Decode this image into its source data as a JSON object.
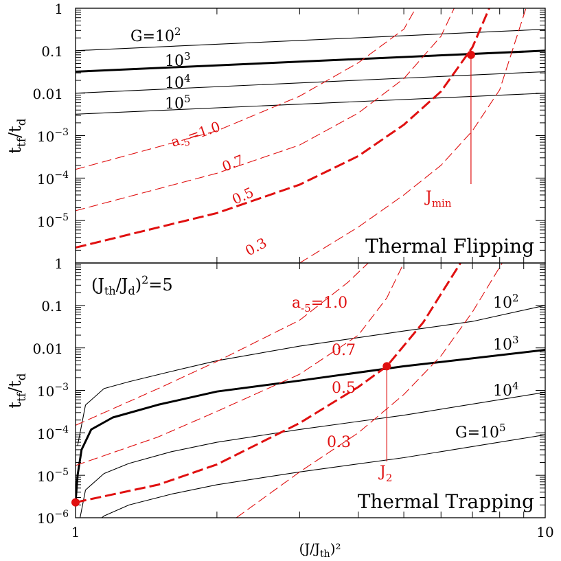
{
  "chart_data": [
    {
      "type": "line",
      "title": "Thermal Flipping",
      "xscale": "log",
      "yscale": "log",
      "xlim": [
        1,
        10
      ],
      "ylim": [
        1e-06,
        1
      ],
      "xlabel": "",
      "ylabel": "t_tf/t_d",
      "ytick_labels": [
        "1",
        "0.1",
        "0.01",
        "10^-3",
        "10^-4",
        "10^-5"
      ],
      "series": [
        {
          "name": "G=10^2",
          "color": "#000000",
          "style": "solid",
          "x": [
            1,
            10
          ],
          "y": [
            0.1,
            0.32
          ]
        },
        {
          "name": "10^3",
          "color": "#000000",
          "style": "solid-bold",
          "x": [
            1,
            10
          ],
          "y": [
            0.032,
            0.1
          ]
        },
        {
          "name": "10^4",
          "color": "#000000",
          "style": "solid",
          "x": [
            1,
            10
          ],
          "y": [
            0.01,
            0.032
          ]
        },
        {
          "name": "10^5",
          "color": "#000000",
          "style": "solid",
          "x": [
            1,
            10
          ],
          "y": [
            0.0032,
            0.01
          ]
        },
        {
          "name": "a_-5=1.0",
          "color": "#e01010",
          "style": "dashed",
          "x": [
            1,
            2,
            3,
            4,
            5,
            5.3
          ],
          "y": [
            0.00016,
            0.0013,
            0.0085,
            0.052,
            0.32,
            1
          ]
        },
        {
          "name": "0.7",
          "color": "#e01010",
          "style": "dashed",
          "x": [
            1,
            2,
            3,
            4,
            5,
            6,
            6.4
          ],
          "y": [
            1.7e-05,
            0.00013,
            0.0006,
            0.0034,
            0.022,
            0.22,
            1
          ]
        },
        {
          "name": "0.5",
          "color": "#e01010",
          "style": "dashed-bold",
          "x": [
            1,
            2,
            3,
            4,
            5,
            6,
            7,
            7.6
          ],
          "y": [
            2.3e-06,
            1.5e-05,
            7e-05,
            0.00033,
            0.0018,
            0.011,
            0.12,
            1
          ]
        },
        {
          "name": "0.3",
          "color": "#e01010",
          "style": "dashed",
          "x": [
            3,
            4,
            5,
            6,
            7,
            8,
            9.1
          ],
          "y": [
            1e-06,
            7e-06,
            4e-05,
            0.0002,
            0.0013,
            0.012,
            1
          ]
        }
      ],
      "point": {
        "label": "J_min",
        "x": 6.95,
        "y": 0.08
      },
      "annotations": {
        "g_label": "G=10",
        "g_exp": "2",
        "g3": "10",
        "g3_exp": "3",
        "g4": "10",
        "g4_exp": "4",
        "g5": "10",
        "g5_exp": "5",
        "a_label": "a",
        "a_sub": "-5",
        "a_val": "=1.0",
        "a07": "0.7",
        "a05": "0.5",
        "a03": "0.3",
        "jmin": "J",
        "jmin_sub": "min"
      }
    },
    {
      "type": "line",
      "title": "Thermal Trapping",
      "xscale": "log",
      "yscale": "log",
      "xlim": [
        1,
        10
      ],
      "ylim": [
        1e-06,
        1
      ],
      "xlabel": "(J/J_th)^2",
      "ylabel": "t_tf/t_d",
      "subtitle": "(J_th/J_d)^2=5",
      "xtick_labels": [
        "1",
        "10"
      ],
      "ytick_labels": [
        "1",
        "0.1",
        "0.01",
        "10^-3",
        "10^-4",
        "10^-5",
        "10^-6"
      ],
      "series": [
        {
          "name": "10^2",
          "color": "#000000",
          "style": "solid",
          "x": [
            1.01,
            1.05,
            1.15,
            1.3,
            1.6,
            2,
            3,
            5,
            7,
            10
          ],
          "y": [
            5e-05,
            0.00045,
            0.0011,
            0.0016,
            0.0028,
            0.005,
            0.011,
            0.025,
            0.042,
            0.1
          ]
        },
        {
          "name": "10^3",
          "color": "#000000",
          "style": "solid-bold",
          "x": [
            1,
            1.01,
            1.03,
            1.08,
            1.2,
            1.5,
            2,
            3,
            5,
            10
          ],
          "y": [
            2.3e-06,
            1e-05,
            4e-05,
            0.00012,
            0.00023,
            0.00046,
            0.00094,
            0.0017,
            0.0037,
            0.009
          ]
        },
        {
          "name": "10^4",
          "color": "#000000",
          "style": "solid",
          "x": [
            1.01,
            1.05,
            1.15,
            1.3,
            1.6,
            2,
            3,
            5,
            10
          ],
          "y": [
            5e-07,
            4.5e-06,
            1.1e-05,
            1.9e-05,
            3.6e-05,
            6e-05,
            0.00012,
            0.00026,
            0.0009
          ]
        },
        {
          "name": "G=10^5",
          "color": "#000000",
          "style": "solid",
          "x": [
            1.05,
            1.15,
            1.3,
            1.6,
            2,
            3,
            5,
            10
          ],
          "y": [
            5e-07,
            1.1e-06,
            2e-06,
            3.6e-06,
            6e-06,
            1.2e-05,
            2.6e-05,
            9e-05
          ]
        },
        {
          "name": "a_-5=1.0",
          "color": "#e01010",
          "style": "dashed",
          "x": [
            1,
            1.5,
            2,
            3,
            3.8,
            4.2
          ],
          "y": [
            0.00015,
            0.0011,
            0.0048,
            0.045,
            0.35,
            1
          ]
        },
        {
          "name": "0.7",
          "color": "#e01010",
          "style": "dashed",
          "x": [
            1,
            1.5,
            2,
            3,
            4,
            4.6,
            5
          ],
          "y": [
            1.7e-05,
            8e-05,
            0.00032,
            0.0024,
            0.02,
            0.15,
            1
          ]
        },
        {
          "name": "0.5",
          "color": "#e01010",
          "style": "dashed-bold",
          "x": [
            1,
            1.5,
            2,
            3,
            4,
            4.6,
            5.5,
            6.6
          ],
          "y": [
            2.3e-06,
            6e-06,
            1.8e-05,
            0.00017,
            0.0012,
            0.0037,
            0.04,
            1
          ]
        },
        {
          "name": "0.3",
          "color": "#e01010",
          "style": "dashed",
          "x": [
            2.2,
            3,
            4,
            5,
            6,
            7,
            8.1
          ],
          "y": [
            1e-06,
            1.2e-05,
            0.0001,
            0.0008,
            0.0065,
            0.07,
            1
          ]
        }
      ],
      "points": [
        {
          "x": 1,
          "y": 2.3e-06
        },
        {
          "label": "J_2",
          "x": 4.6,
          "y": 0.0037
        }
      ],
      "annotations": {
        "sub_open": "(J",
        "sub_th": "th",
        "sub_mid": "/J",
        "sub_d": "d",
        "sub_close": ")",
        "sub_exp": "2",
        "sub_eq": "=5",
        "a_label": "a",
        "a_sub": "-5",
        "a_val": "=1.0",
        "a07": "0.7",
        "a05": "0.5",
        "a03": "0.3",
        "g2": "10",
        "g2_exp": "2",
        "g3": "10",
        "g3_exp": "3",
        "g4": "10",
        "g4_exp": "4",
        "g5": "G=10",
        "g5_exp": "5",
        "j2": "J",
        "j2_sub": "2"
      }
    }
  ],
  "axis": {
    "ylabel_t": "t",
    "ylabel_sub_tf": "tf",
    "ylabel_slash": "/t",
    "ylabel_sub_d": "d",
    "xlabel_main": "(J/J",
    "xlabel_sub": "th",
    "xlabel_end": ")²"
  },
  "colors": {
    "red": "#e01010",
    "black": "#000000"
  }
}
